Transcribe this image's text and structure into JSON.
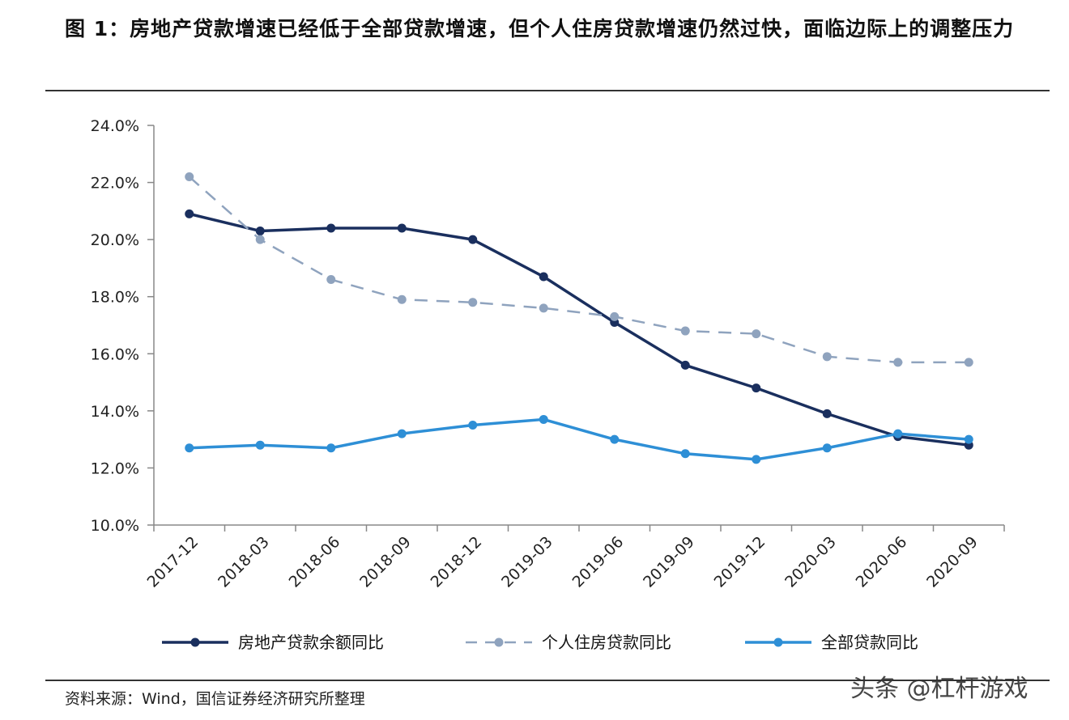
{
  "header": {
    "title": "图 1：房地产贷款增速已经低于全部贷款增速，但个人住房贷款增速仍然过快，面临边际上的调整压力"
  },
  "footer": {
    "source": "资料来源：Wind，国信证券经济研究所整理",
    "watermark": "头条 @杠杆游戏"
  },
  "chart_data": {
    "type": "line",
    "title": "",
    "xlabel": "",
    "ylabel": "",
    "categories": [
      "2017-12",
      "2018-03",
      "2018-06",
      "2018-09",
      "2018-12",
      "2019-03",
      "2019-06",
      "2019-09",
      "2019-12",
      "2020-03",
      "2020-06",
      "2020-09"
    ],
    "ylim": [
      10.0,
      24.0
    ],
    "yticks": [
      "10.0%",
      "12.0%",
      "14.0%",
      "16.0%",
      "18.0%",
      "20.0%",
      "22.0%",
      "24.0%"
    ],
    "yticks_values": [
      10,
      12,
      14,
      16,
      18,
      20,
      22,
      24
    ],
    "grid": false,
    "legend_position": "bottom",
    "series": [
      {
        "name": "房地产贷款余额同比",
        "color": "#1a2f5e",
        "dash": false,
        "values": [
          20.9,
          20.3,
          20.4,
          20.4,
          20.0,
          18.7,
          17.1,
          15.6,
          14.8,
          13.9,
          13.1,
          12.8
        ]
      },
      {
        "name": "个人住房贷款同比",
        "color": "#8fa3be",
        "dash": true,
        "values": [
          22.2,
          20.0,
          18.6,
          17.9,
          17.8,
          17.6,
          17.3,
          16.8,
          16.7,
          15.9,
          15.7,
          15.7
        ]
      },
      {
        "name": "全部贷款同比",
        "color": "#2e8fd6",
        "dash": false,
        "values": [
          12.7,
          12.8,
          12.7,
          13.2,
          13.5,
          13.7,
          13.0,
          12.5,
          12.3,
          12.7,
          13.2,
          13.0
        ]
      }
    ]
  }
}
